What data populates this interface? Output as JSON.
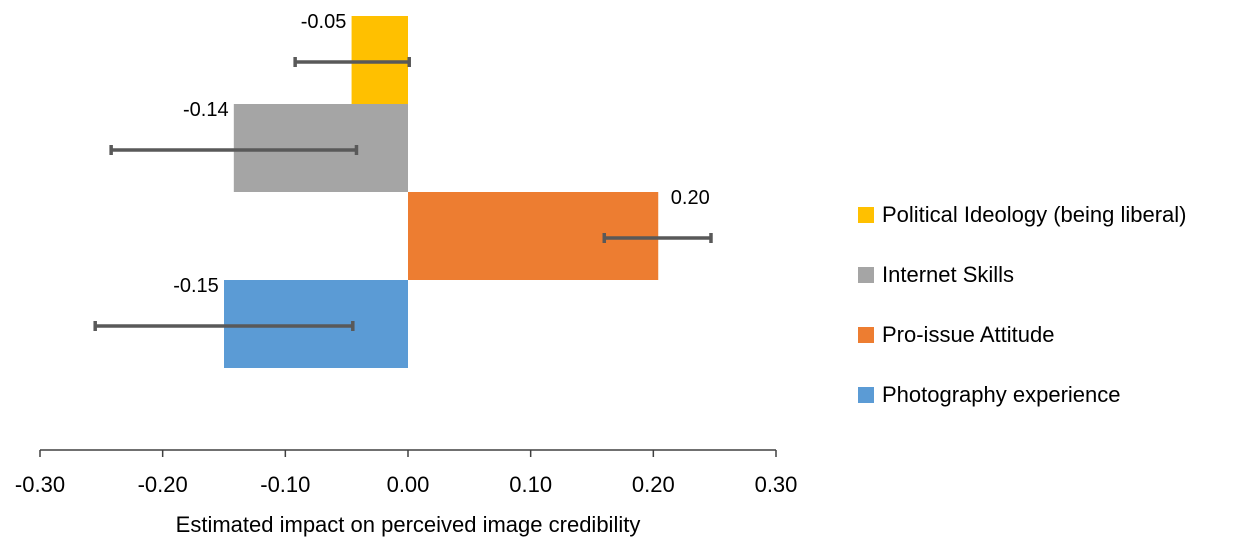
{
  "chart_data": {
    "type": "bar",
    "orientation": "horizontal",
    "xlabel": "Estimated impact on perceived image credibility",
    "xlim": [
      -0.3,
      0.3
    ],
    "xticks": [
      "-0.30",
      "-0.20",
      "-0.10",
      "0.00",
      "0.10",
      "0.20",
      "0.30"
    ],
    "grid": false,
    "legend_position": "right",
    "series": [
      {
        "name": "Political Ideology (being liberal)",
        "value": -0.046,
        "label": "-0.05",
        "error_low": -0.092,
        "error_high": 0.001,
        "color": "#FFC000"
      },
      {
        "name": "Internet Skills",
        "value": -0.142,
        "label": "-0.14",
        "error_low": -0.242,
        "error_high": -0.042,
        "color": "#A5A5A5"
      },
      {
        "name": "Pro-issue Attitude",
        "value": 0.204,
        "label": "0.20",
        "error_low": 0.16,
        "error_high": 0.247,
        "color": "#ED7D31"
      },
      {
        "name": "Photography experience",
        "value": -0.15,
        "label": "-0.15",
        "error_low": -0.255,
        "error_high": -0.045,
        "color": "#5B9BD5"
      }
    ]
  }
}
